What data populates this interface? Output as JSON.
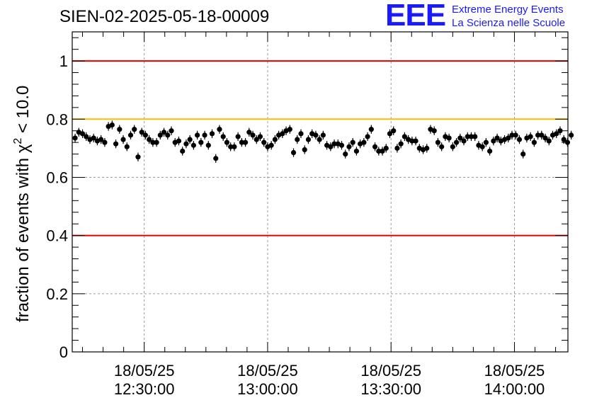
{
  "title": "SIEN-02-2025-05-18-00009",
  "logo": {
    "mark": "EEE",
    "line1": "Extreme Energy Events",
    "line2": "La Scienza nelle Scuole"
  },
  "chart_data": {
    "type": "scatter",
    "title": "SIEN-02-2025-05-18-00009",
    "ylabel_parts": [
      "fraction of events with ",
      "χ",
      "2",
      " < 10.0"
    ],
    "ylim": [
      0,
      1.1
    ],
    "xlim_minutes": [
      12.5,
      133
    ],
    "yticks": [
      0,
      0.2,
      0.4,
      0.6,
      0.8,
      1
    ],
    "ytick_labels": [
      "0",
      "0.2",
      "0.4",
      "0.6",
      "0.8",
      "1"
    ],
    "xticks": [
      {
        "minute": 30,
        "date": "18/05/25",
        "time": "12:30:00"
      },
      {
        "minute": 60,
        "date": "18/05/25",
        "time": "13:00:00"
      },
      {
        "minute": 90,
        "date": "18/05/25",
        "time": "13:30:00"
      },
      {
        "minute": 120,
        "date": "18/05/25",
        "time": "14:00:00"
      }
    ],
    "grid": true,
    "reference_lines": [
      {
        "y": 1.0,
        "color": "#e00000"
      },
      {
        "y": 0.8,
        "color": "#ffbb00"
      },
      {
        "y": 0.4,
        "color": "#e00000"
      }
    ],
    "marker_color": "#000000",
    "error": 0.015,
    "x_start_minute": 13.2,
    "x_step_minutes": 0.9,
    "values": [
      0.735,
      0.755,
      0.75,
      0.74,
      0.73,
      0.735,
      0.725,
      0.73,
      0.72,
      0.775,
      0.78,
      0.715,
      0.765,
      0.73,
      0.705,
      0.745,
      0.765,
      0.67,
      0.755,
      0.745,
      0.73,
      0.72,
      0.72,
      0.745,
      0.755,
      0.745,
      0.76,
      0.72,
      0.725,
      0.69,
      0.715,
      0.73,
      0.71,
      0.745,
      0.72,
      0.745,
      0.71,
      0.75,
      0.665,
      0.765,
      0.74,
      0.72,
      0.705,
      0.705,
      0.74,
      0.72,
      0.72,
      0.755,
      0.745,
      0.73,
      0.74,
      0.72,
      0.705,
      0.71,
      0.73,
      0.745,
      0.75,
      0.76,
      0.765,
      0.685,
      0.73,
      0.75,
      0.695,
      0.73,
      0.75,
      0.745,
      0.73,
      0.745,
      0.71,
      0.705,
      0.715,
      0.715,
      0.71,
      0.68,
      0.705,
      0.72,
      0.69,
      0.715,
      0.72,
      0.74,
      0.765,
      0.705,
      0.69,
      0.69,
      0.7,
      0.75,
      0.76,
      0.7,
      0.715,
      0.74,
      0.73,
      0.725,
      0.725,
      0.7,
      0.695,
      0.7,
      0.765,
      0.76,
      0.72,
      0.705,
      0.74,
      0.735,
      0.705,
      0.72,
      0.735,
      0.725,
      0.74,
      0.74,
      0.74,
      0.71,
      0.705,
      0.72,
      0.69,
      0.725,
      0.735,
      0.725,
      0.73,
      0.735,
      0.745,
      0.745,
      0.73,
      0.68,
      0.735,
      0.74,
      0.72,
      0.745,
      0.745,
      0.735,
      0.725,
      0.745,
      0.75,
      0.76,
      0.73,
      0.72,
      0.745
    ]
  }
}
